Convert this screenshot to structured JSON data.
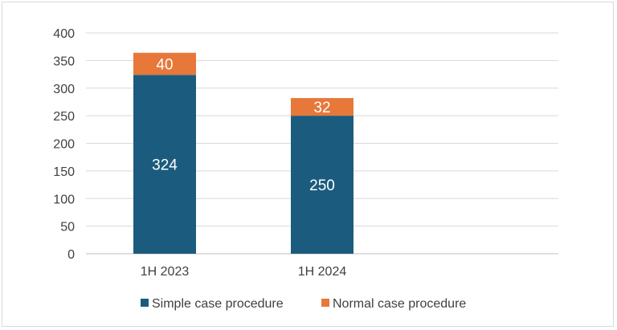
{
  "chart_data": {
    "type": "bar",
    "stacked": true,
    "categories": [
      "1H 2023",
      "1H 2024"
    ],
    "series": [
      {
        "name": "Simple case procedure",
        "values": [
          324,
          250
        ],
        "color": "#1b5c7e"
      },
      {
        "name": "Normal case procedure",
        "values": [
          40,
          32
        ],
        "color": "#e8773a"
      }
    ],
    "yticks": [
      "0",
      "50",
      "100",
      "150",
      "200",
      "250",
      "300",
      "350",
      "400"
    ],
    "ylim": [
      0,
      400
    ],
    "grid": true,
    "legend_position": "bottom",
    "title": "",
    "xlabel": "",
    "ylabel": ""
  }
}
